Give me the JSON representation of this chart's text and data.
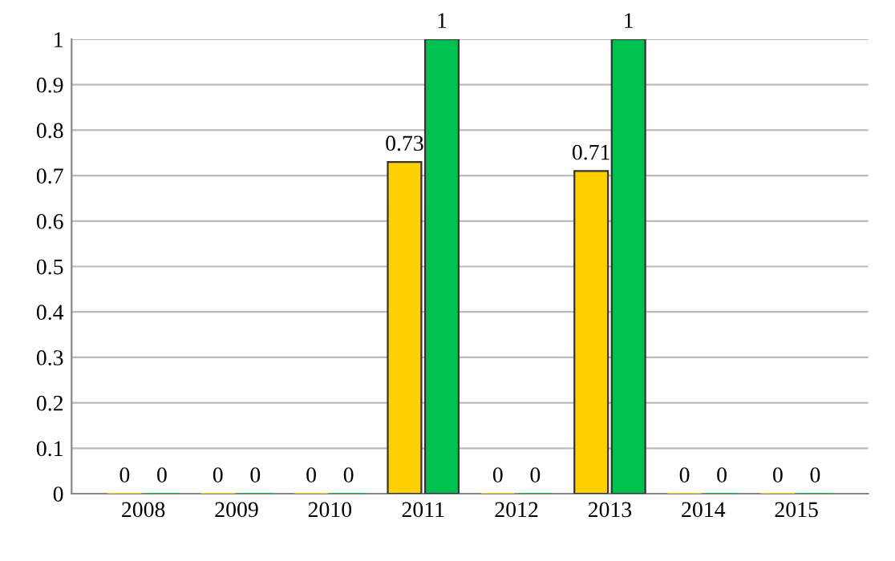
{
  "chart_data": {
    "type": "bar",
    "categories": [
      "2008",
      "2009",
      "2010",
      "2011",
      "2012",
      "2013",
      "2014",
      "2015"
    ],
    "series": [
      {
        "color": "#ffd000",
        "values": [
          0,
          0,
          0,
          0.73,
          0,
          0.71,
          0,
          0
        ]
      },
      {
        "color": "#00c050",
        "values": [
          0,
          0,
          0,
          1,
          0,
          1,
          0,
          0
        ]
      }
    ],
    "ylim": [
      0,
      1
    ],
    "yticks": [
      0,
      0.1,
      0.2,
      0.3,
      0.4,
      0.5,
      0.6,
      0.7,
      0.8,
      0.9,
      1
    ],
    "grid": "y",
    "data_labels": true
  }
}
